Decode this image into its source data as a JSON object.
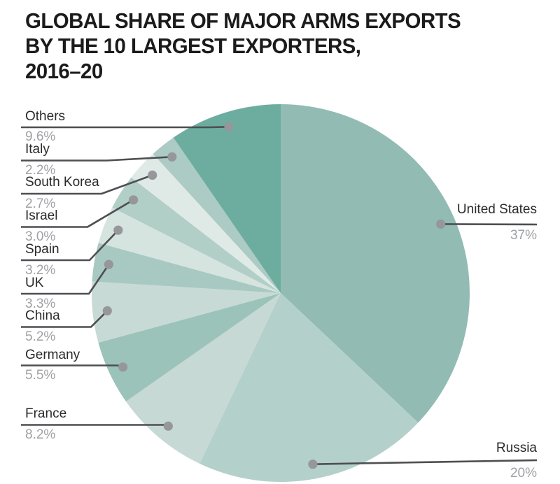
{
  "title": {
    "lines": [
      "GLOBAL SHARE OF MAJOR ARMS EXPORTS",
      "BY THE 10 LARGEST EXPORTERS,",
      "2016–20"
    ],
    "full": "GLOBAL SHARE OF MAJOR ARMS EXPORTS BY THE 10 LARGEST EXPORTERS, 2016–20"
  },
  "chart_data": {
    "type": "pie",
    "title": "GLOBAL SHARE OF MAJOR ARMS EXPORTS BY THE 10 LARGEST EXPORTERS, 2016–20",
    "unit": "percent",
    "start_angle_deg": 0,
    "direction": "clockwise",
    "slices": [
      {
        "label": "United States",
        "value": 37,
        "display": "37%",
        "color": "#92bcb3"
      },
      {
        "label": "Russia",
        "value": 20,
        "display": "20%",
        "color": "#b4d0ca"
      },
      {
        "label": "France",
        "value": 8.2,
        "display": "8.2%",
        "color": "#c6d9d4"
      },
      {
        "label": "Germany",
        "value": 5.5,
        "display": "5.5%",
        "color": "#9cc3ba"
      },
      {
        "label": "China",
        "value": 5.2,
        "display": "5.2%",
        "color": "#c7dad5"
      },
      {
        "label": "UK",
        "value": 3.3,
        "display": "3.3%",
        "color": "#a8c9c1"
      },
      {
        "label": "Spain",
        "value": 3.2,
        "display": "3.2%",
        "color": "#d6e4e0"
      },
      {
        "label": "Israel",
        "value": 3.0,
        "display": "3.0%",
        "color": "#b1cec7"
      },
      {
        "label": "South Korea",
        "value": 2.7,
        "display": "2.7%",
        "color": "#dfeae6"
      },
      {
        "label": "Italy",
        "value": 2.2,
        "display": "2.2%",
        "color": "#abcbc4"
      },
      {
        "label": "Others",
        "value": 9.6,
        "display": "9.6%",
        "color": "#6cada0"
      }
    ]
  },
  "colors": {
    "background": "#ffffff",
    "title_text": "#1b1b1b",
    "label_text": "#2a2a2c",
    "percent_text": "#9fa1a4",
    "leader_line": "#4e4f52",
    "leader_dot": "#95979a"
  }
}
